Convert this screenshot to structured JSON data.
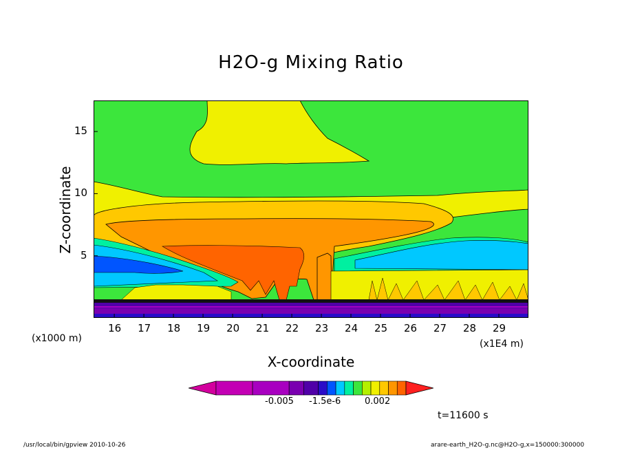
{
  "title": "H2O-g Mixing Ratio",
  "ylabel": "Z-coordinate",
  "xlabel": "X-coordinate",
  "z_unit": "(x1000 m)",
  "x_unit": "(x1E4 m)",
  "time_label": "t=11600 s",
  "footer_left": "/usr/local/bin/gpview  2010-10-26",
  "footer_right": "arare-earth_H2O-g.nc@H2O-g,x=150000:300000",
  "colorbar": {
    "tick_labels": [
      "-0.005",
      "-1.5e-6",
      "0.002"
    ],
    "colors": [
      "#d3009e",
      "#c300b4",
      "#a800c0",
      "#7a00b0",
      "#5000a8",
      "#2a0cc8",
      "#0055ff",
      "#00c8ff",
      "#00f0a0",
      "#3ce63c",
      "#b4f000",
      "#f0f000",
      "#ffc800",
      "#ff9600",
      "#ff6400",
      "#ff2020"
    ]
  },
  "chart_data": {
    "type": "heatmap",
    "title": "H2O-g Mixing Ratio",
    "xlabel": "X-coordinate",
    "ylabel": "Z-coordinate",
    "x_ticks": [
      16,
      17,
      18,
      19,
      20,
      21,
      22,
      23,
      24,
      25,
      26,
      27,
      28,
      29
    ],
    "y_ticks": [
      5,
      10,
      15
    ],
    "xlim": [
      15.3,
      30.0
    ],
    "ylim": [
      0,
      17.5
    ],
    "x_unit": "(x1E4 m)",
    "z_unit": "(x1000 m)",
    "colorbar_labels": [
      "-0.005",
      "-1.5e-6",
      "0.002"
    ],
    "time": "t=11600 s"
  }
}
